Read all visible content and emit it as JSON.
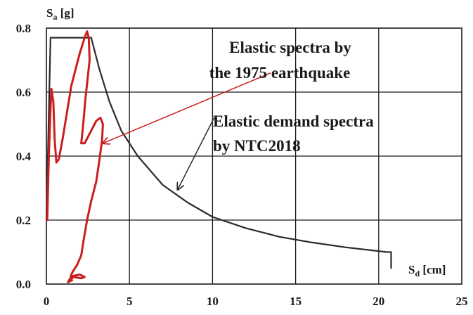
{
  "chart_data": {
    "type": "line",
    "xlabel": "S",
    "xlabel_sub": "d",
    "xlabel_unit": " [cm]",
    "ylabel": "S",
    "ylabel_sub": "a",
    "ylabel_unit": " [g]",
    "xlim": [
      0,
      25
    ],
    "ylim": [
      0,
      0.8
    ],
    "x_ticks": [
      "0",
      "5",
      "10",
      "15",
      "20",
      "25"
    ],
    "y_ticks": [
      "0.0",
      "0.2",
      "0.4",
      "0.6",
      "0.8"
    ],
    "grid": true,
    "series": [
      {
        "label_lines": [
          "Elastic demand spectra",
          "by NTC2018"
        ],
        "color": "#2b2b2b",
        "points": [
          [
            0.0,
            0.2
          ],
          [
            0.25,
            0.77
          ],
          [
            2.7,
            0.77
          ],
          [
            3.2,
            0.67
          ],
          [
            3.8,
            0.57
          ],
          [
            4.5,
            0.48
          ],
          [
            5.5,
            0.4
          ],
          [
            7.0,
            0.31
          ],
          [
            8.5,
            0.255
          ],
          [
            10.0,
            0.21
          ],
          [
            12.0,
            0.175
          ],
          [
            14.0,
            0.148
          ],
          [
            16.0,
            0.13
          ],
          [
            18.0,
            0.115
          ],
          [
            20.5,
            0.1
          ],
          [
            20.75,
            0.1
          ],
          [
            20.75,
            0.05
          ]
        ],
        "arrow_from": [
          10.1,
          0.52
        ],
        "arrow_to": [
          7.9,
          0.295
        ]
      },
      {
        "label_lines": [
          "Elastic spectra by",
          "the 1975 earthquake"
        ],
        "color": "#cc1e1e",
        "points": [
          [
            0.05,
            0.2
          ],
          [
            0.15,
            0.4
          ],
          [
            0.25,
            0.55
          ],
          [
            0.3,
            0.61
          ],
          [
            0.42,
            0.57
          ],
          [
            0.5,
            0.45
          ],
          [
            0.6,
            0.38
          ],
          [
            0.75,
            0.39
          ],
          [
            1.0,
            0.46
          ],
          [
            1.5,
            0.62
          ],
          [
            2.0,
            0.72
          ],
          [
            2.3,
            0.77
          ],
          [
            2.45,
            0.79
          ],
          [
            2.55,
            0.77
          ],
          [
            2.6,
            0.7
          ],
          [
            2.35,
            0.58
          ],
          [
            2.2,
            0.49
          ],
          [
            2.1,
            0.44
          ],
          [
            2.3,
            0.44
          ],
          [
            2.6,
            0.47
          ],
          [
            3.0,
            0.51
          ],
          [
            3.25,
            0.52
          ],
          [
            3.4,
            0.5
          ],
          [
            3.35,
            0.45
          ],
          [
            3.2,
            0.39
          ],
          [
            3.0,
            0.32
          ],
          [
            2.7,
            0.26
          ],
          [
            2.45,
            0.2
          ],
          [
            2.25,
            0.14
          ],
          [
            2.1,
            0.09
          ],
          [
            1.85,
            0.06
          ],
          [
            1.6,
            0.04
          ],
          [
            1.5,
            0.03
          ],
          [
            1.45,
            0.02
          ],
          [
            1.6,
            0.025
          ],
          [
            2.0,
            0.03
          ],
          [
            2.3,
            0.022
          ],
          [
            2.1,
            0.018
          ],
          [
            1.65,
            0.022
          ],
          [
            1.4,
            0.015
          ],
          [
            1.3,
            0.006
          ],
          [
            1.55,
            0.012
          ]
        ],
        "arrow_from": [
          13.5,
          0.66
        ],
        "arrow_to": [
          3.4,
          0.44
        ]
      }
    ]
  }
}
